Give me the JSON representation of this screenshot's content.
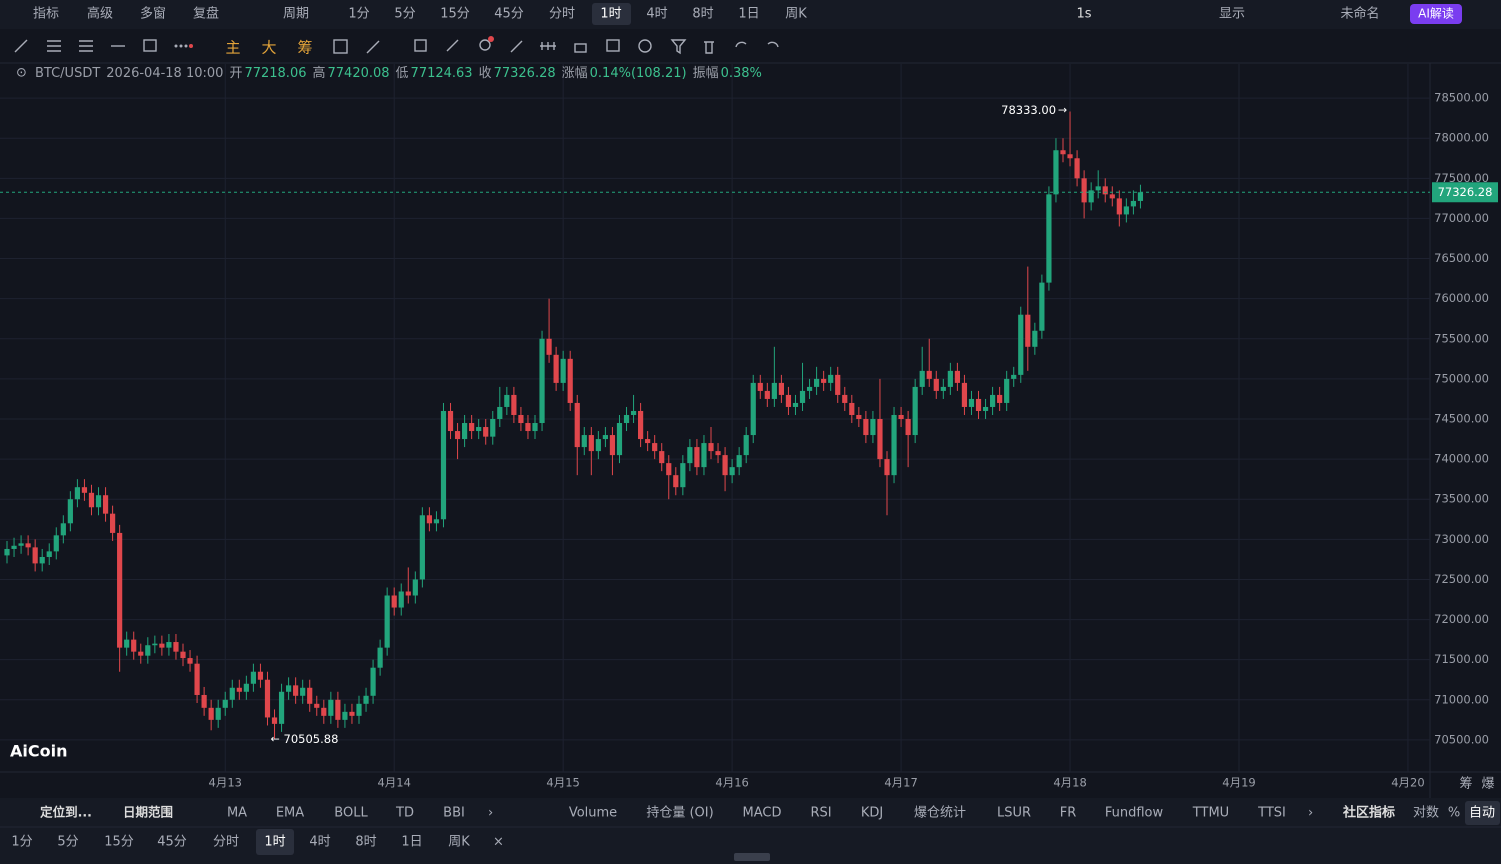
{
  "toolbar": {
    "left": [
      "指标",
      "高级",
      "多窗",
      "复盘"
    ],
    "period_menu": "周期",
    "periods": [
      "1分",
      "5分",
      "15分",
      "45分",
      "分时",
      "1时",
      "4时",
      "8时",
      "1日",
      "周K"
    ],
    "right": [
      "1s",
      "显示",
      "未命名",
      "AI解读"
    ]
  },
  "drawing_tools": [
    "主",
    "大",
    "筹"
  ],
  "info": {
    "symbol": "BTC/USDT",
    "time": "2026-04-18 10:00",
    "fields": [
      [
        "开",
        "77218.06"
      ],
      [
        "高",
        "77420.08"
      ],
      [
        "低",
        "77124.63"
      ],
      [
        "收",
        "77326.28"
      ],
      [
        "涨幅",
        "0.14%(108.21)"
      ],
      [
        "振幅",
        "0.38%"
      ]
    ]
  },
  "chart_data": {
    "type": "candlestick",
    "categories": [
      null,
      null,
      null,
      null,
      null,
      null,
      null,
      null,
      null,
      null,
      null,
      null,
      null,
      null,
      null,
      null,
      null,
      null,
      null,
      null,
      null,
      null,
      null,
      null,
      null,
      null,
      null,
      null,
      null,
      null,
      null,
      "4月13",
      null,
      null,
      null,
      null,
      null,
      null,
      null,
      null,
      null,
      null,
      null,
      null,
      null,
      null,
      null,
      null,
      null,
      null,
      null,
      null,
      null,
      null,
      null,
      "4月14",
      null,
      null,
      null,
      null,
      null,
      null,
      null,
      null,
      null,
      null,
      null,
      null,
      null,
      null,
      null,
      null,
      null,
      null,
      null,
      null,
      null,
      null,
      null,
      "4月15",
      null,
      null,
      null,
      null,
      null,
      null,
      null,
      null,
      null,
      null,
      null,
      null,
      null,
      null,
      null,
      null,
      null,
      null,
      null,
      null,
      null,
      null,
      null,
      "4月16",
      null,
      null,
      null,
      null,
      null,
      null,
      null,
      null,
      null,
      null,
      null,
      null,
      null,
      null,
      null,
      null,
      null,
      null,
      null,
      null,
      null,
      null,
      null,
      "4月17",
      null,
      null,
      null,
      null,
      null,
      null,
      null,
      null,
      null,
      null,
      null,
      null,
      null,
      null,
      null,
      null,
      null,
      null,
      null,
      null,
      null,
      null,
      null,
      "4月18",
      null,
      null,
      null,
      null,
      null,
      null,
      null,
      null,
      null,
      null,
      null,
      null,
      null,
      null,
      null,
      null,
      null,
      null,
      null,
      null,
      null,
      null,
      null,
      "4月19",
      null,
      null,
      null,
      null,
      null,
      null,
      null,
      null,
      null,
      null,
      null,
      null,
      null,
      null,
      null,
      null,
      null,
      null,
      null,
      null,
      null,
      null,
      null,
      "4月20"
    ],
    "open": [
      72800,
      72880,
      72920,
      72950,
      72900,
      72700,
      72780,
      72850,
      73050,
      73200,
      73500,
      73650,
      73580,
      73400,
      73550,
      73320,
      73080,
      71650,
      71750,
      71600,
      71550,
      71680,
      71700,
      71650,
      71720,
      71600,
      71520,
      71450,
      71060,
      70900,
      70750,
      70900,
      71000,
      71150,
      71100,
      71200,
      71350,
      71250,
      70780,
      70700,
      71100,
      71180,
      71050,
      71150,
      70950,
      70900,
      70800,
      71000,
      70750,
      70850,
      70800,
      70950,
      71050,
      71400,
      71650,
      72300,
      72150,
      72350,
      72300,
      72500,
      73300,
      73200,
      73250,
      74600,
      74350,
      74250,
      74450,
      74350,
      74400,
      74280,
      74500,
      74650,
      74800,
      74550,
      74450,
      74350,
      74450,
      75500,
      75300,
      74950,
      75250,
      74700,
      74150,
      74300,
      74100,
      74250,
      74300,
      74050,
      74450,
      74550,
      74600,
      74250,
      74200,
      74100,
      73950,
      73800,
      73650,
      73950,
      74150,
      73900,
      74200,
      74100,
      74050,
      73800,
      73900,
      74050,
      74300,
      74950,
      74850,
      74750,
      74950,
      74800,
      74650,
      74700,
      74850,
      74900,
      75000,
      74950,
      75050,
      74800,
      74700,
      74550,
      74500,
      74300,
      74500,
      74000,
      73800,
      74550,
      74500,
      74300,
      74900,
      75100,
      75000,
      74850,
      74900,
      75100,
      74950,
      74650,
      74750,
      74600,
      74650,
      74800,
      74700,
      75000,
      75050,
      75800,
      75400,
      75600,
      76200,
      77300,
      77850,
      77800,
      77750,
      77500,
      77200,
      77350,
      77400,
      77300,
      77250,
      77050,
      77150,
      77218.06,
      null,
      null,
      null,
      null,
      null,
      null,
      null,
      null,
      null,
      null,
      null,
      null,
      null,
      null,
      null,
      null,
      null,
      null,
      null,
      null,
      null,
      null,
      null,
      null,
      null,
      null,
      null,
      null,
      null,
      null,
      null,
      null,
      null,
      null,
      null,
      null,
      null,
      null
    ],
    "high": [
      72980,
      73020,
      73050,
      73050,
      73000,
      72880,
      72950,
      73150,
      73300,
      73600,
      73750,
      73750,
      73680,
      73650,
      73650,
      73420,
      73180,
      71850,
      71850,
      71700,
      71780,
      71800,
      71800,
      71820,
      71820,
      71700,
      71620,
      71550,
      71160,
      71000,
      71000,
      71100,
      71250,
      71250,
      71300,
      71450,
      71450,
      71350,
      70880,
      71200,
      71280,
      71280,
      71250,
      71250,
      71050,
      71000,
      71100,
      71100,
      70950,
      70950,
      71050,
      71150,
      71500,
      71750,
      72400,
      72400,
      72450,
      72650,
      72600,
      73400,
      73400,
      73350,
      74700,
      74700,
      74450,
      74550,
      74550,
      74500,
      74500,
      74600,
      74900,
      74900,
      74900,
      74650,
      74550,
      74550,
      75600,
      76000,
      75400,
      75350,
      75350,
      74800,
      74400,
      74400,
      74350,
      74400,
      74400,
      74550,
      74650,
      74800,
      74700,
      74350,
      74300,
      74200,
      74050,
      73900,
      74050,
      74250,
      74250,
      74300,
      74400,
      74200,
      74150,
      74000,
      74150,
      74400,
      75050,
      75050,
      74950,
      75400,
      75050,
      74900,
      74800,
      75200,
      75000,
      75150,
      75100,
      75150,
      75150,
      74900,
      74800,
      74650,
      74600,
      74600,
      75000,
      74100,
      74650,
      74650,
      74600,
      75000,
      75400,
      75500,
      75100,
      75000,
      75200,
      75200,
      75050,
      74850,
      74850,
      74750,
      74900,
      74900,
      75100,
      75150,
      75900,
      76400,
      75700,
      76300,
      77400,
      78000,
      78000,
      78333,
      77850,
      77600,
      77450,
      77600,
      77500,
      77400,
      77350,
      77250,
      77350,
      77420.08,
      null,
      null,
      null,
      null,
      null,
      null,
      null,
      null,
      null,
      null,
      null,
      null,
      null,
      null,
      null,
      null,
      null,
      null,
      null,
      null,
      null,
      null,
      null,
      null,
      null,
      null,
      null,
      null,
      null,
      null,
      null,
      null,
      null,
      null,
      null,
      null,
      null,
      null
    ],
    "low": [
      72700,
      72780,
      72820,
      72800,
      72600,
      72600,
      72680,
      72750,
      72950,
      73100,
      73400,
      73480,
      73300,
      73300,
      73220,
      72980,
      71350,
      71550,
      71500,
      71450,
      71450,
      71580,
      71550,
      71550,
      71500,
      71420,
      71350,
      70960,
      70800,
      70620,
      70650,
      70800,
      70900,
      71000,
      71000,
      71100,
      71150,
      70680,
      70505.88,
      70600,
      71000,
      70950,
      70950,
      70850,
      70800,
      70700,
      70700,
      70650,
      70650,
      70700,
      70700,
      70850,
      70950,
      71300,
      71550,
      72050,
      72050,
      72200,
      72200,
      72400,
      73100,
      73100,
      73150,
      74250,
      74000,
      74150,
      74250,
      74250,
      74180,
      74180,
      74400,
      74550,
      74450,
      74350,
      74250,
      74250,
      74350,
      75200,
      74850,
      74850,
      74600,
      73800,
      74050,
      73800,
      74000,
      74150,
      73800,
      73950,
      74350,
      74450,
      74150,
      74100,
      74000,
      73850,
      73500,
      73550,
      73550,
      73850,
      73800,
      73800,
      74000,
      73950,
      73600,
      73700,
      73800,
      73950,
      74200,
      74750,
      74650,
      74650,
      74700,
      74550,
      74550,
      74600,
      74750,
      74800,
      74850,
      74850,
      74700,
      74600,
      74450,
      74400,
      74200,
      74200,
      73900,
      73300,
      73700,
      74400,
      73900,
      74200,
      74800,
      74900,
      74750,
      74750,
      74800,
      74850,
      74550,
      74550,
      74500,
      74500,
      74550,
      74600,
      74600,
      74900,
      74950,
      75100,
      75300,
      75500,
      76100,
      77200,
      77700,
      77650,
      77400,
      77000,
      77100,
      77250,
      77200,
      77150,
      76900,
      76950,
      77050,
      77124.63,
      null,
      null,
      null,
      null,
      null,
      null,
      null,
      null,
      null,
      null,
      null,
      null,
      null,
      null,
      null,
      null,
      null,
      null,
      null,
      null,
      null,
      null,
      null,
      null,
      null,
      null,
      null,
      null,
      null,
      null,
      null,
      null,
      null,
      null,
      null,
      null,
      null,
      null
    ],
    "close": [
      72880,
      72920,
      72950,
      72900,
      72700,
      72780,
      72850,
      73050,
      73200,
      73500,
      73650,
      73580,
      73400,
      73550,
      73320,
      73080,
      71650,
      71750,
      71600,
      71550,
      71680,
      71700,
      71650,
      71720,
      71600,
      71520,
      71450,
      71060,
      70900,
      70750,
      70900,
      71000,
      71150,
      71100,
      71200,
      71350,
      71250,
      70780,
      70700,
      71100,
      71180,
      71050,
      71150,
      70950,
      70900,
      70800,
      71000,
      70750,
      70850,
      70800,
      70950,
      71050,
      71400,
      71650,
      72300,
      72150,
      72350,
      72300,
      72500,
      73300,
      73200,
      73250,
      74600,
      74350,
      74250,
      74450,
      74350,
      74400,
      74280,
      74500,
      74650,
      74800,
      74550,
      74450,
      74350,
      74450,
      75500,
      75300,
      74950,
      75250,
      74700,
      74150,
      74300,
      74100,
      74250,
      74300,
      74050,
      74450,
      74550,
      74600,
      74250,
      74200,
      74100,
      73950,
      73800,
      73650,
      73950,
      74150,
      73900,
      74200,
      74100,
      74050,
      73800,
      73900,
      74050,
      74300,
      74950,
      74850,
      74750,
      74950,
      74800,
      74650,
      74700,
      74850,
      74900,
      75000,
      74950,
      75050,
      74800,
      74700,
      74550,
      74500,
      74300,
      74500,
      74000,
      73800,
      74550,
      74500,
      74300,
      74900,
      75100,
      75000,
      74850,
      74900,
      75100,
      74950,
      74650,
      74750,
      74600,
      74650,
      74800,
      74700,
      75000,
      75050,
      75800,
      75400,
      75600,
      76200,
      77300,
      77850,
      77800,
      77750,
      77500,
      77200,
      77350,
      77400,
      77300,
      77250,
      77050,
      77150,
      77218.06,
      77326.28,
      null,
      null,
      null,
      null,
      null,
      null,
      null,
      null,
      null,
      null,
      null,
      null,
      null,
      null,
      null,
      null,
      null,
      null,
      null,
      null,
      null,
      null,
      null,
      null,
      null,
      null,
      null,
      null,
      null,
      null,
      null,
      null,
      null,
      null,
      null,
      null,
      null,
      null
    ],
    "up_color": "#22a57c",
    "down_color": "#e0474c",
    "ylim": [
      70100,
      78925
    ],
    "yticks": [
      {
        "value": 70500,
        "label": "70500.00"
      },
      {
        "value": 71000,
        "label": "71000.00"
      },
      {
        "value": 71500,
        "label": "71500.00"
      },
      {
        "value": 72000,
        "label": "72000.00"
      },
      {
        "value": 72500,
        "label": "72500.00"
      },
      {
        "value": 73000,
        "label": "73000.00"
      },
      {
        "value": 73500,
        "label": "73500.00"
      },
      {
        "value": 74000,
        "label": "74000.00"
      },
      {
        "value": 74500,
        "label": "74500.00"
      },
      {
        "value": 75000,
        "label": "75000.00"
      },
      {
        "value": 75500,
        "label": "75500.00"
      },
      {
        "value": 76000,
        "label": "76000.00"
      },
      {
        "value": 76500,
        "label": "76500.00"
      },
      {
        "value": 77000,
        "label": "77000.00"
      },
      {
        "value": 77500,
        "label": "77500.00"
      },
      {
        "value": 78000,
        "label": "78000.00"
      },
      {
        "value": 78500,
        "label": "78500.00"
      }
    ],
    "grid": true,
    "annotations": [
      {
        "value": 78333,
        "label": "78333.00"
      },
      {
        "value": 70505.88,
        "label": "70505.88"
      }
    ],
    "last_price": {
      "value": 77326.28,
      "label": "77326.28"
    }
  },
  "logo": "AiCoin",
  "side_labels": [
    "筹",
    "爆"
  ],
  "indicator_bar": {
    "left": [
      "定位到...",
      "日期范围"
    ],
    "main": [
      "MA",
      "EMA",
      "BOLL",
      "TD",
      "BBI"
    ],
    "sub": [
      "Volume",
      "持仓量 (OI)",
      "MACD",
      "RSI",
      "KDJ",
      "爆仓统计",
      "LSUR",
      "FR",
      "Fundflow",
      "TTMU",
      "TTSI"
    ],
    "community": "社区指标",
    "right": [
      "对数",
      "%",
      "自动"
    ]
  },
  "period_bar": [
    "1分",
    "5分",
    "15分",
    "45分",
    "分时",
    "1时",
    "4时",
    "8时",
    "1日",
    "周K"
  ]
}
